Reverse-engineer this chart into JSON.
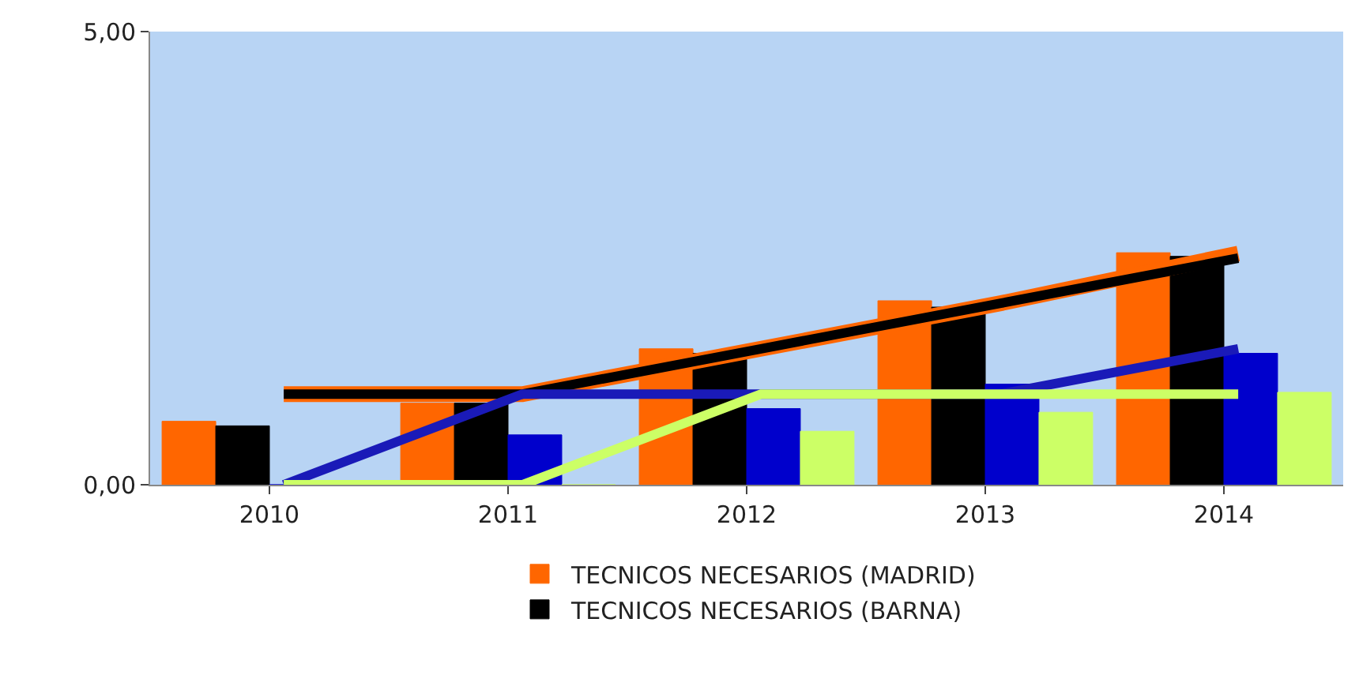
{
  "chart_data": {
    "type": "bar",
    "categories": [
      "2010",
      "2011",
      "2012",
      "2013",
      "2014"
    ],
    "ylim": [
      0,
      5
    ],
    "yticks": [
      {
        "value": 0,
        "label": "0,00"
      },
      {
        "value": 5,
        "label": "5,00"
      }
    ],
    "legend": "bottom",
    "series": [
      {
        "name": "TECNICOS NECESARIOS (MADRID)",
        "color": "#ff6600",
        "values": [
          0.7,
          0.9,
          1.5,
          2.03,
          2.56
        ]
      },
      {
        "name": "TECNICOS NECESARIOS (BARNA)",
        "color": "#000000",
        "values": [
          0.65,
          0.9,
          1.45,
          1.96,
          2.52
        ]
      },
      {
        "color": "#0000cc",
        "values": [
          0,
          0.55,
          0.84,
          1.11,
          1.45
        ]
      },
      {
        "color": "#ccff66",
        "values": [
          0,
          0,
          0.59,
          0.8,
          1.02
        ]
      },
      {
        "type": "line",
        "color": "#ff6600",
        "values": [
          1,
          1,
          1.5,
          2,
          2.55
        ]
      },
      {
        "type": "line",
        "color": "#000000",
        "values": [
          1,
          1,
          1.5,
          2,
          2.5
        ]
      },
      {
        "type": "line",
        "color": "#1a1ab8",
        "values": [
          0,
          1,
          1,
          1,
          1.5
        ]
      },
      {
        "type": "line",
        "color": "#ccff66",
        "values": [
          0,
          0,
          1,
          1,
          1
        ]
      }
    ]
  }
}
